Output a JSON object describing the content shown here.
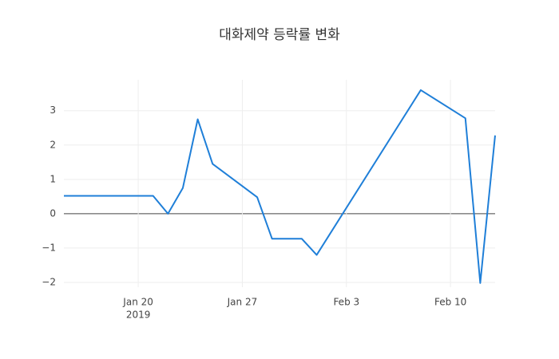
{
  "chart_data": {
    "type": "line",
    "title": "대화제약 등락률 변화",
    "x": [
      "2019-01-15",
      "2019-01-16",
      "2019-01-17",
      "2019-01-18",
      "2019-01-21",
      "2019-01-22",
      "2019-01-23",
      "2019-01-24",
      "2019-01-25",
      "2019-01-28",
      "2019-01-29",
      "2019-01-30",
      "2019-01-31",
      "2019-02-01",
      "2019-02-08",
      "2019-02-11",
      "2019-02-12",
      "2019-02-13"
    ],
    "series": [
      {
        "color": "#1f7fd8",
        "values": [
          0.52,
          0.52,
          0.52,
          0.52,
          0.52,
          0,
          0.75,
          2.75,
          1.45,
          0.48,
          -0.73,
          -0.73,
          -0.73,
          -1.2,
          3.6,
          2.78,
          -2.02,
          2.28
        ]
      }
    ],
    "xlim": [
      "2019-01-15",
      "2019-02-13"
    ],
    "xticks": [
      {
        "value": "2019-01-20",
        "label": "Jan 20"
      },
      {
        "value": "2019-01-27",
        "label": "Jan 27"
      },
      {
        "value": "2019-02-03",
        "label": "Feb 3"
      },
      {
        "value": "2019-02-10",
        "label": "Feb 10"
      }
    ],
    "xtick_year": "2019",
    "ylim": [
      -2.14,
      3.9
    ],
    "yticks": [
      {
        "value": -2,
        "label": "−2"
      },
      {
        "value": -1,
        "label": "−1"
      },
      0,
      1,
      2,
      3
    ],
    "grid": true
  }
}
